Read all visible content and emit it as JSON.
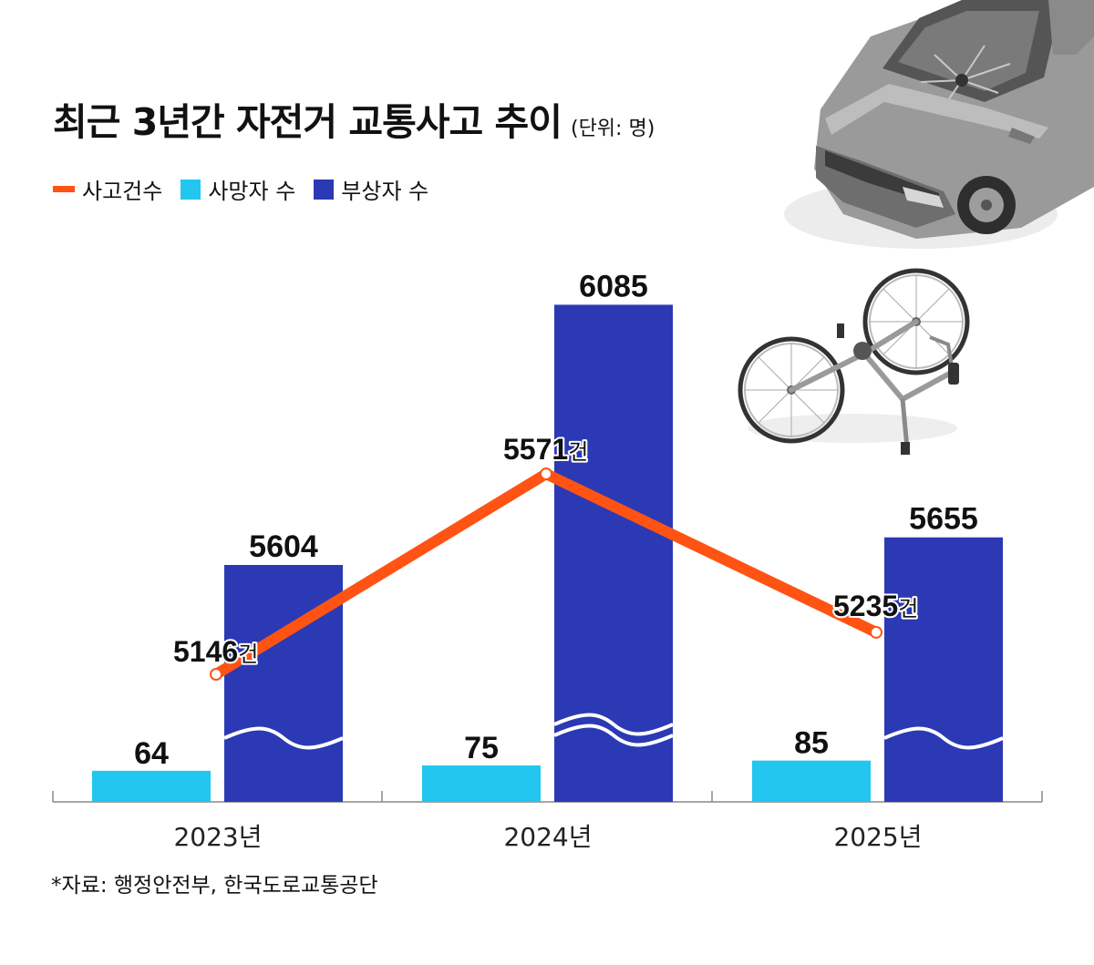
{
  "title": "최근 3년간 자전거 교통사고 추이",
  "unit_note": "(단위: 명)",
  "source": "*자료: 행정안전부, 한국도로교통공단",
  "colors": {
    "accidents": "#ff5314",
    "deaths": "#22c6ef",
    "injuries": "#2b39b4"
  },
  "chart_data": {
    "type": "bar",
    "categories": [
      "2023년",
      "2024년",
      "2025년"
    ],
    "series": [
      {
        "name": "사망자 수",
        "type": "bar",
        "values": [
          64,
          75,
          85
        ]
      },
      {
        "name": "부상자 수",
        "type": "bar",
        "values": [
          5604,
          6085,
          5655
        ],
        "axis_break": true
      },
      {
        "name": "사고건수",
        "type": "line",
        "values": [
          5146,
          5571,
          5235
        ],
        "suffix": "건"
      }
    ],
    "legend": [
      "사고건수",
      "사망자 수",
      "부상자 수"
    ],
    "legend_position": "top-left",
    "grid": false
  },
  "illustrations": [
    "damaged-car-icon",
    "fallen-bicycle-icon"
  ]
}
